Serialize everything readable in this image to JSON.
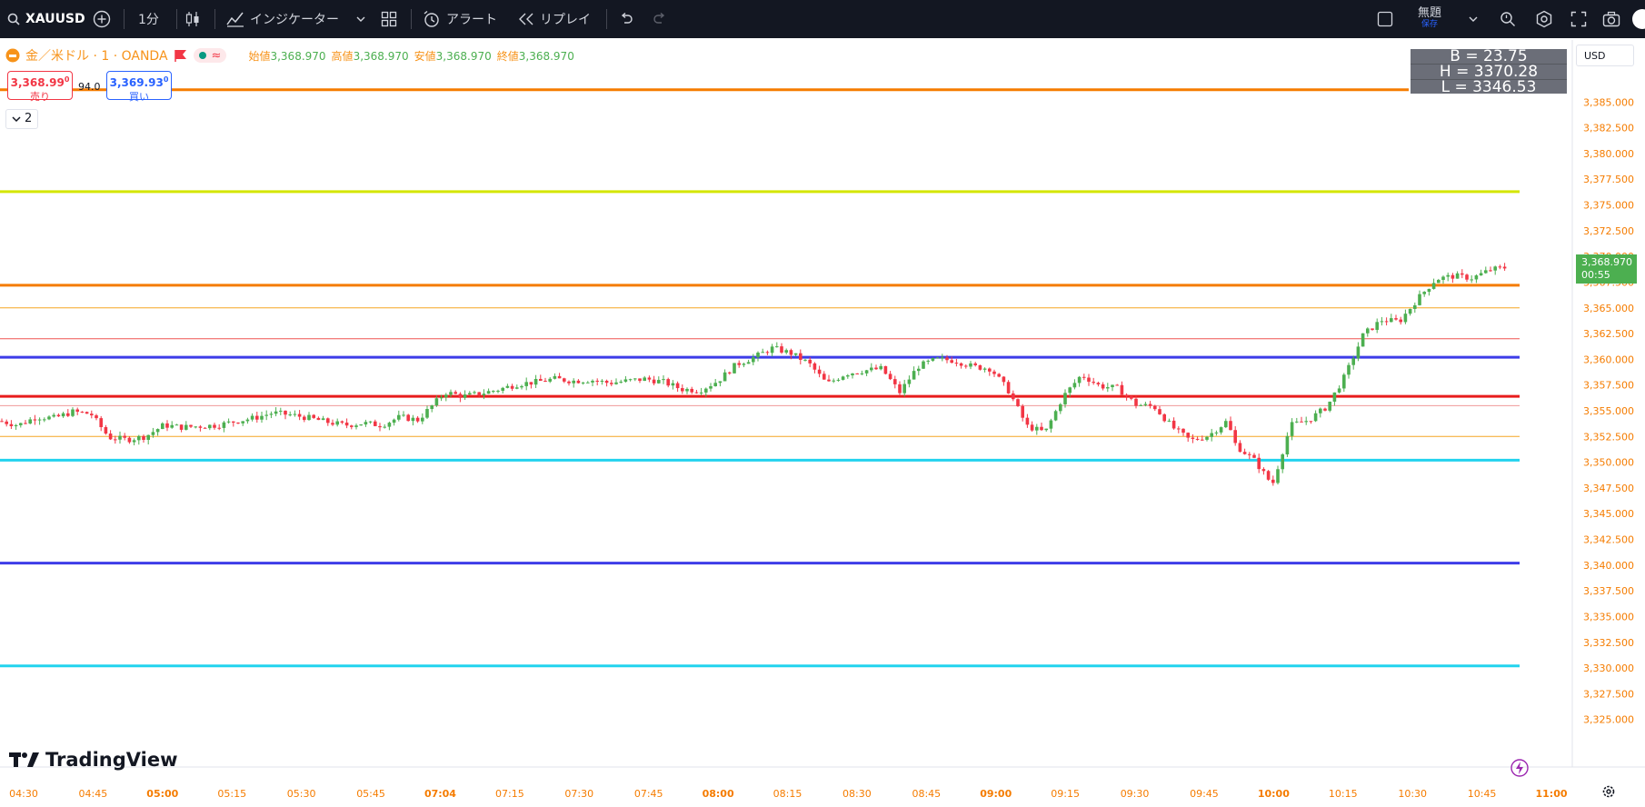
{
  "toolbar": {
    "symbol": "XAUUSD",
    "interval": "1分",
    "indicators_label": "インジケーター",
    "alert_label": "アラート",
    "replay_label": "リプレイ",
    "layout_name": "無題",
    "layout_saved": "保存"
  },
  "legend": {
    "title": "金／米ドル · 1 · OANDA",
    "open_label": "始値",
    "open_value": "3,368.970",
    "high_label": "高値",
    "high_value": "3,368.970",
    "low_label": "安値",
    "low_value": "3,368.970",
    "close_label": "終値",
    "close_value": "3,368.970"
  },
  "trade": {
    "sell_price": "3,368.99",
    "sell_sup": "0",
    "sell_label": "売り",
    "spread": "94.0",
    "buy_price": "3,369.93",
    "buy_sup": "0",
    "buy_label": "買い"
  },
  "collapse_count": "2",
  "info_box": {
    "b": "B = 23.75",
    "h": "H = 3370.28",
    "l": "L = 3346.53"
  },
  "currency": "USD",
  "price_tag": {
    "price": "3,368.970",
    "countdown": "00:55"
  },
  "brand": "TradingView",
  "colors": {
    "up": "#4caf50",
    "down": "#f23645",
    "accent": "#2962ff",
    "legend_orange": "#f7931a",
    "toolbar_bg": "#131722"
  },
  "chart_data": {
    "type": "candlestick",
    "symbol": "XAUUSD",
    "ylim": [
      3322.5,
      3387.5
    ],
    "y_ticks": [
      "3,385.000",
      "3,382.500",
      "3,380.000",
      "3,377.500",
      "3,375.000",
      "3,372.500",
      "3,370.000",
      "3,367.500",
      "3,365.000",
      "3,362.500",
      "3,360.000",
      "3,357.500",
      "3,355.000",
      "3,352.500",
      "3,350.000",
      "3,347.500",
      "3,345.000",
      "3,342.500",
      "3,340.000",
      "3,337.500",
      "3,335.000",
      "3,332.500",
      "3,330.000",
      "3,327.500",
      "3,325.000"
    ],
    "x_ticks": [
      {
        "label": "04:30",
        "bold": false
      },
      {
        "label": "04:45",
        "bold": false
      },
      {
        "label": "05:00",
        "bold": true
      },
      {
        "label": "05:15",
        "bold": false
      },
      {
        "label": "05:30",
        "bold": false
      },
      {
        "label": "05:45",
        "bold": false
      },
      {
        "label": "07:04",
        "bold": true
      },
      {
        "label": "07:15",
        "bold": false
      },
      {
        "label": "07:30",
        "bold": false
      },
      {
        "label": "07:45",
        "bold": false
      },
      {
        "label": "08:00",
        "bold": true
      },
      {
        "label": "08:15",
        "bold": false
      },
      {
        "label": "08:30",
        "bold": false
      },
      {
        "label": "08:45",
        "bold": false
      },
      {
        "label": "09:00",
        "bold": true
      },
      {
        "label": "09:15",
        "bold": false
      },
      {
        "label": "09:30",
        "bold": false
      },
      {
        "label": "09:45",
        "bold": false
      },
      {
        "label": "10:00",
        "bold": true
      },
      {
        "label": "10:15",
        "bold": false
      },
      {
        "label": "10:30",
        "bold": false
      },
      {
        "label": "10:45",
        "bold": false
      },
      {
        "label": "11:00",
        "bold": true
      }
    ],
    "horizontal_lines": [
      {
        "price": 3386.2,
        "color": "#f57c00",
        "width": 3
      },
      {
        "price": 3376.3,
        "color": "#d4e600",
        "width": 3
      },
      {
        "price": 3367.2,
        "color": "#f57c00",
        "width": 3
      },
      {
        "price": 3365.0,
        "color": "#f5a623",
        "width": 1
      },
      {
        "price": 3362.0,
        "color": "#ef5350",
        "width": 1
      },
      {
        "price": 3360.2,
        "color": "#3d3ce8",
        "width": 3
      },
      {
        "price": 3356.4,
        "color": "#e81c1c",
        "width": 3
      },
      {
        "price": 3355.5,
        "color": "#ef9a9a",
        "width": 1
      },
      {
        "price": 3352.5,
        "color": "#f5a623",
        "width": 1
      },
      {
        "price": 3350.2,
        "color": "#22d3ee",
        "width": 3
      },
      {
        "price": 3340.2,
        "color": "#3d3ce8",
        "width": 3
      },
      {
        "price": 3330.2,
        "color": "#22d3ee",
        "width": 3
      }
    ],
    "close_path": [
      [
        0,
        3354.0
      ],
      [
        20,
        3353.6
      ],
      [
        40,
        3354.4
      ],
      [
        60,
        3354.3
      ],
      [
        80,
        3354.9
      ],
      [
        100,
        3354.7
      ],
      [
        120,
        3352.4
      ],
      [
        140,
        3352.2
      ],
      [
        160,
        3352.5
      ],
      [
        180,
        3353.6
      ],
      [
        200,
        3353.4
      ],
      [
        220,
        3353.5
      ],
      [
        240,
        3353.6
      ],
      [
        260,
        3354.0
      ],
      [
        280,
        3354.3
      ],
      [
        300,
        3354.8
      ],
      [
        320,
        3354.6
      ],
      [
        340,
        3354.3
      ],
      [
        360,
        3353.9
      ],
      [
        380,
        3353.6
      ],
      [
        400,
        3353.8
      ],
      [
        420,
        3353.6
      ],
      [
        440,
        3354.4
      ],
      [
        460,
        3354.1
      ],
      [
        490,
        3356.8
      ],
      [
        510,
        3356.4
      ],
      [
        530,
        3356.7
      ],
      [
        550,
        3357.1
      ],
      [
        570,
        3357.6
      ],
      [
        590,
        3357.8
      ],
      [
        610,
        3358.1
      ],
      [
        630,
        3357.9
      ],
      [
        650,
        3358.0
      ],
      [
        670,
        3357.7
      ],
      [
        690,
        3357.9
      ],
      [
        710,
        3358.1
      ],
      [
        730,
        3357.8
      ],
      [
        750,
        3357.1
      ],
      [
        770,
        3357.0
      ],
      [
        790,
        3357.9
      ],
      [
        810,
        3359.5
      ],
      [
        830,
        3360.2
      ],
      [
        850,
        3361.1
      ],
      [
        870,
        3360.6
      ],
      [
        890,
        3359.6
      ],
      [
        910,
        3357.6
      ],
      [
        930,
        3358.6
      ],
      [
        950,
        3358.9
      ],
      [
        970,
        3359.1
      ],
      [
        990,
        3356.8
      ],
      [
        1010,
        3359.3
      ],
      [
        1030,
        3360.0
      ],
      [
        1050,
        3359.9
      ],
      [
        1070,
        3359.3
      ],
      [
        1090,
        3359.1
      ],
      [
        1110,
        3356.9
      ],
      [
        1130,
        3353.5
      ],
      [
        1150,
        3352.9
      ],
      [
        1170,
        3356.4
      ],
      [
        1190,
        3358.5
      ],
      [
        1210,
        3357.4
      ],
      [
        1230,
        3357.2
      ],
      [
        1250,
        3355.6
      ],
      [
        1270,
        3355.4
      ],
      [
        1290,
        3353.4
      ],
      [
        1310,
        3352.1
      ],
      [
        1330,
        3352.6
      ],
      [
        1350,
        3354.0
      ],
      [
        1360,
        3351.6
      ],
      [
        1380,
        3350.2
      ],
      [
        1400,
        3347.8
      ],
      [
        1420,
        3353.6
      ],
      [
        1440,
        3354.1
      ],
      [
        1460,
        3355.4
      ],
      [
        1480,
        3358.4
      ],
      [
        1500,
        3362.4
      ],
      [
        1520,
        3363.8
      ],
      [
        1540,
        3363.7
      ],
      [
        1560,
        3365.9
      ],
      [
        1580,
        3367.8
      ],
      [
        1600,
        3368.1
      ],
      [
        1620,
        3367.9
      ],
      [
        1640,
        3368.7
      ],
      [
        1660,
        3368.97
      ]
    ]
  }
}
